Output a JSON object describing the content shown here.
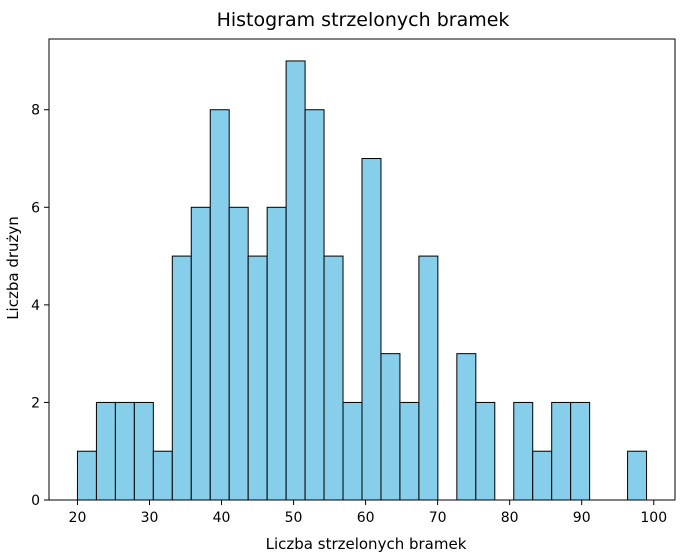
{
  "chart_data": {
    "type": "bar",
    "title": "Histogram strzelonych bramek",
    "xlabel": "Liczba strzelonych bramek",
    "ylabel": "Liczba drużyn",
    "bin_start": 20,
    "bin_width": 2.6333,
    "counts": [
      1,
      2,
      2,
      2,
      1,
      5,
      6,
      8,
      6,
      5,
      6,
      9,
      8,
      5,
      2,
      7,
      3,
      2,
      5,
      0,
      3,
      2,
      0,
      2,
      1,
      2,
      2,
      0,
      0,
      1
    ],
    "xlim": [
      16.05,
      102.95
    ],
    "ylim": [
      0,
      9.45
    ],
    "xticks": [
      20,
      30,
      40,
      50,
      60,
      70,
      80,
      90,
      100
    ],
    "yticks": [
      0,
      2,
      4,
      6,
      8
    ],
    "bar_color": "#87ceeb",
    "edge_color": "#000000",
    "grid": false,
    "legend": "none"
  }
}
